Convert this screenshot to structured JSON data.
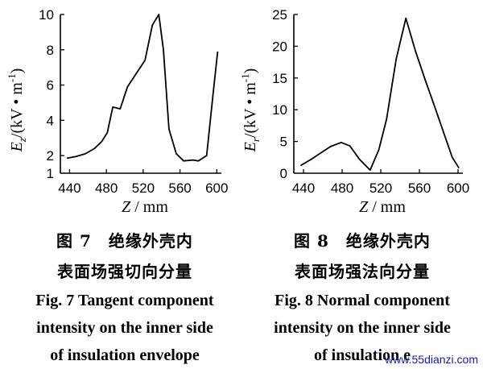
{
  "chart_data": [
    {
      "type": "line",
      "xlabel_var": "Z",
      "xlabel_unit": "/ mm",
      "ylabel_var": "E",
      "ylabel_sub": "z",
      "ylabel_unit": "/(kV • m",
      "ylabel_sup": "-1",
      "ylabel_close": ")",
      "xlim": [
        430,
        605
      ],
      "ylim": [
        1,
        10
      ],
      "xticks": [
        440,
        480,
        520,
        560,
        600
      ],
      "yticks": [
        1,
        2,
        4,
        6,
        8,
        10
      ],
      "series": [
        {
          "x": [
            437,
            447,
            457,
            467,
            475,
            481,
            487,
            495,
            503,
            513,
            522,
            530,
            537,
            542,
            548,
            556,
            564,
            574,
            580,
            589,
            596,
            601
          ],
          "y": [
            1.85,
            1.95,
            2.1,
            2.4,
            2.8,
            3.3,
            4.75,
            4.65,
            5.9,
            6.7,
            7.4,
            9.4,
            10.0,
            8.0,
            3.5,
            2.1,
            1.7,
            1.75,
            1.7,
            2.0,
            5.5,
            7.9
          ]
        }
      ]
    },
    {
      "type": "line",
      "xlabel_var": "Z",
      "xlabel_unit": "/ mm",
      "ylabel_var": "E",
      "ylabel_sub": "r",
      "ylabel_unit": "/(kV • m",
      "ylabel_sup": "-1",
      "ylabel_close": ")",
      "xlim": [
        430,
        605
      ],
      "ylim": [
        0,
        25
      ],
      "xticks": [
        440,
        480,
        520,
        560,
        600
      ],
      "yticks": [
        0,
        5,
        10,
        15,
        20,
        25
      ],
      "series": [
        {
          "x": [
            437,
            448,
            458,
            468,
            479,
            488,
            498,
            509,
            518,
            526,
            536,
            546,
            556,
            566,
            576,
            586,
            594,
            601
          ],
          "y": [
            1.2,
            2.2,
            3.2,
            4.2,
            4.85,
            4.3,
            2.2,
            0.5,
            3.7,
            8.5,
            18.0,
            24.4,
            19.2,
            14.7,
            10.4,
            6.0,
            2.5,
            0.8
          ]
        }
      ]
    }
  ],
  "captions": {
    "left": {
      "cn_line1": "图 7　绝缘外壳内",
      "cn_line2": "表面场强切向分量",
      "en_line1": "Fig. 7 Tangent component",
      "en_line2": "intensity on the inner side",
      "en_line3": "of insulation envelope"
    },
    "right": {
      "cn_line1": "图 8　绝缘外壳内",
      "cn_line2": "表面场强法向分量",
      "en_line1": "Fig. 8 Normal component",
      "en_line2": "intensity on the inner side",
      "en_line3": "of insulation e"
    }
  },
  "watermark": "www.55dianzi.com"
}
